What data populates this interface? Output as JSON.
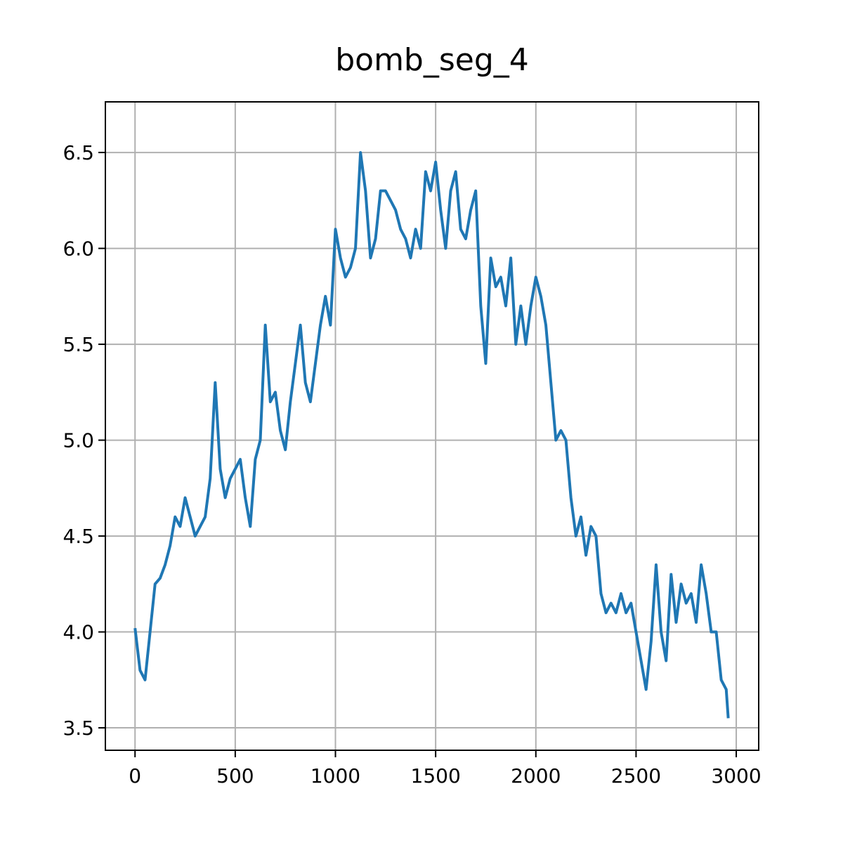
{
  "chart_data": {
    "type": "line",
    "title": "bomb_seg_4",
    "x": [
      0,
      25,
      50,
      75,
      100,
      125,
      150,
      175,
      200,
      225,
      250,
      275,
      300,
      325,
      350,
      375,
      400,
      425,
      450,
      475,
      500,
      525,
      550,
      575,
      600,
      625,
      650,
      675,
      700,
      725,
      750,
      775,
      800,
      825,
      850,
      875,
      900,
      925,
      950,
      975,
      1000,
      1025,
      1050,
      1075,
      1100,
      1125,
      1150,
      1175,
      1200,
      1225,
      1250,
      1275,
      1300,
      1325,
      1350,
      1375,
      1400,
      1425,
      1450,
      1475,
      1500,
      1525,
      1550,
      1575,
      1600,
      1625,
      1650,
      1675,
      1700,
      1725,
      1750,
      1775,
      1800,
      1825,
      1850,
      1875,
      1900,
      1925,
      1950,
      1975,
      2000,
      2025,
      2050,
      2075,
      2100,
      2125,
      2150,
      2175,
      2200,
      2225,
      2250,
      2275,
      2300,
      2325,
      2350,
      2375,
      2400,
      2425,
      2450,
      2475,
      2500,
      2525,
      2550,
      2575,
      2600,
      2625,
      2650,
      2675,
      2700,
      2725,
      2750,
      2775,
      2800,
      2825,
      2850,
      2875,
      2900,
      2925,
      2950,
      2960
    ],
    "series": [
      {
        "name": "bomb_seg_4",
        "color": "#1f77b4",
        "values": [
          4.02,
          3.8,
          3.75,
          4.0,
          4.25,
          4.28,
          4.35,
          4.45,
          4.6,
          4.55,
          4.7,
          4.6,
          4.5,
          4.55,
          4.6,
          4.8,
          5.3,
          4.85,
          4.7,
          4.8,
          4.85,
          4.9,
          4.7,
          4.55,
          4.9,
          5.0,
          5.6,
          5.2,
          5.25,
          5.05,
          4.95,
          5.2,
          5.4,
          5.6,
          5.3,
          5.2,
          5.4,
          5.6,
          5.75,
          5.6,
          6.1,
          5.95,
          5.85,
          5.9,
          6.0,
          6.5,
          6.3,
          5.95,
          6.05,
          6.3,
          6.3,
          6.25,
          6.2,
          6.1,
          6.05,
          5.95,
          6.1,
          6.0,
          6.4,
          6.3,
          6.45,
          6.2,
          6.0,
          6.3,
          6.4,
          6.1,
          6.05,
          6.2,
          6.3,
          5.7,
          5.4,
          5.95,
          5.8,
          5.85,
          5.7,
          5.95,
          5.5,
          5.7,
          5.5,
          5.7,
          5.85,
          5.75,
          5.6,
          5.3,
          5.0,
          5.05,
          5.0,
          4.7,
          4.5,
          4.6,
          4.4,
          4.55,
          4.5,
          4.2,
          4.1,
          4.15,
          4.1,
          4.2,
          4.1,
          4.15,
          4.0,
          3.85,
          3.7,
          3.95,
          4.35,
          4.0,
          3.85,
          4.3,
          4.05,
          4.25,
          4.15,
          4.2,
          4.05,
          4.35,
          4.2,
          4.0,
          4.0,
          3.75,
          3.7,
          3.55
        ]
      }
    ],
    "xlim": [
      -148,
      3112
    ],
    "ylim": [
      3.383,
      6.764
    ],
    "xticks": [
      0,
      500,
      1000,
      1500,
      2000,
      2500,
      3000
    ],
    "yticks": [
      3.5,
      {
        "value": 4,
        "label": "4.0"
      },
      4.5,
      {
        "value": 5,
        "label": "5.0"
      },
      5.5,
      {
        "value": 6,
        "label": "6.0"
      },
      6.5
    ],
    "grid": true
  }
}
